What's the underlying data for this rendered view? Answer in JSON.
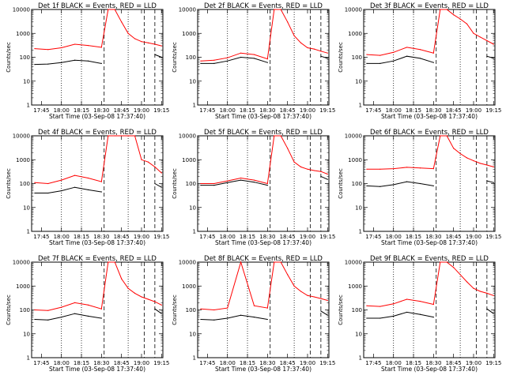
{
  "figure": {
    "title_template": "Det {n}f BLACK = Events, RED = LLD",
    "x_label": "Start Time (03-Sep-08 17:37:40)",
    "y_label": "Counts/sec",
    "x_tick_labels": [
      "17:45",
      "18:00",
      "18:15",
      "18:30",
      "18:45",
      "19:00",
      "19:15"
    ],
    "y_tick_labels": [
      "1",
      "10",
      "100",
      "1000",
      "10000"
    ],
    "colors": {
      "events": "#000000",
      "lld": "#ff0000"
    }
  },
  "chart_data": [
    {
      "type": "line",
      "title": "Det 1f BLACK = Events, RED = LLD",
      "xlabel": "Start Time (03-Sep-08 17:37:40)",
      "ylabel": "Counts/sec",
      "y_scale": "log",
      "ylim": [
        1,
        10000
      ],
      "x_ticks": [
        "17:45",
        "18:00",
        "18:15",
        "18:30",
        "18:45",
        "19:00",
        "19:15"
      ],
      "x": [
        "17:40",
        "17:50",
        "18:00",
        "18:10",
        "18:20",
        "18:30",
        "18:35",
        "18:40",
        "18:45",
        "18:50",
        "18:55",
        "19:00",
        "19:05",
        "19:10",
        "19:15"
      ],
      "series": [
        {
          "name": "Events",
          "values": [
            50,
            52,
            60,
            75,
            70,
            55,
            null,
            null,
            null,
            null,
            null,
            null,
            null,
            130,
            100
          ]
        },
        {
          "name": "LLD",
          "values": [
            230,
            210,
            250,
            350,
            310,
            260,
            10000,
            10000,
            3000,
            1000,
            600,
            450,
            400,
            350,
            300
          ]
        }
      ]
    },
    {
      "type": "line",
      "title": "Det 2f BLACK = Events, RED = LLD",
      "xlabel": "Start Time (03-Sep-08 17:37:40)",
      "ylabel": "Counts/sec",
      "y_scale": "log",
      "ylim": [
        1,
        10000
      ],
      "x_ticks": [
        "17:45",
        "18:00",
        "18:15",
        "18:30",
        "18:45",
        "19:00",
        "19:15"
      ],
      "x": [
        "17:40",
        "17:50",
        "18:00",
        "18:10",
        "18:20",
        "18:30",
        "18:35",
        "18:40",
        "18:45",
        "18:50",
        "18:55",
        "19:00",
        "19:05",
        "19:10",
        "19:15"
      ],
      "series": [
        {
          "name": "Events",
          "values": [
            55,
            55,
            70,
            100,
            90,
            60,
            null,
            null,
            null,
            null,
            null,
            null,
            null,
            110,
            90
          ]
        },
        {
          "name": "LLD",
          "values": [
            70,
            75,
            95,
            150,
            130,
            85,
            10000,
            10000,
            3000,
            800,
            400,
            250,
            220,
            180,
            150
          ]
        }
      ]
    },
    {
      "type": "line",
      "title": "Det 3f BLACK = Events, RED = LLD",
      "xlabel": "Start Time (03-Sep-08 17:37:40)",
      "ylabel": "Counts/sec",
      "y_scale": "log",
      "ylim": [
        1,
        10000
      ],
      "x_ticks": [
        "17:45",
        "18:00",
        "18:15",
        "18:30",
        "18:45",
        "19:00",
        "19:15"
      ],
      "x": [
        "17:40",
        "17:50",
        "18:00",
        "18:10",
        "18:20",
        "18:30",
        "18:35",
        "18:40",
        "18:45",
        "18:50",
        "18:55",
        "19:00",
        "19:05",
        "19:10",
        "19:15"
      ],
      "series": [
        {
          "name": "Events",
          "values": [
            55,
            55,
            70,
            110,
            90,
            60,
            null,
            null,
            null,
            null,
            null,
            null,
            null,
            110,
            90
          ]
        },
        {
          "name": "LLD",
          "values": [
            130,
            120,
            160,
            260,
            210,
            150,
            10000,
            10000,
            6000,
            4000,
            2500,
            1000,
            700,
            500,
            350
          ]
        }
      ]
    },
    {
      "type": "line",
      "title": "Det 4f BLACK = Events, RED = LLD",
      "xlabel": "Start Time (03-Sep-08 17:37:40)",
      "ylabel": "Counts/sec",
      "y_scale": "log",
      "ylim": [
        1,
        10000
      ],
      "x_ticks": [
        "17:45",
        "18:00",
        "18:15",
        "18:30",
        "18:45",
        "19:00",
        "19:15"
      ],
      "x": [
        "17:40",
        "17:50",
        "18:00",
        "18:10",
        "18:20",
        "18:30",
        "18:35",
        "18:40",
        "18:45",
        "18:50",
        "18:55",
        "19:00",
        "19:05",
        "19:10",
        "19:15"
      ],
      "series": [
        {
          "name": "Events",
          "values": [
            40,
            40,
            50,
            70,
            55,
            45,
            null,
            null,
            null,
            null,
            null,
            null,
            null,
            100,
            70
          ]
        },
        {
          "name": "LLD",
          "values": [
            110,
            100,
            140,
            220,
            170,
            120,
            10000,
            10000,
            10000,
            10000,
            10000,
            1000,
            800,
            500,
            280
          ]
        }
      ]
    },
    {
      "type": "line",
      "title": "Det 5f BLACK = Events, RED = LLD",
      "xlabel": "Start Time (03-Sep-08 17:37:40)",
      "ylabel": "Counts/sec",
      "y_scale": "log",
      "ylim": [
        1,
        10000
      ],
      "x_ticks": [
        "17:45",
        "18:00",
        "18:15",
        "18:30",
        "18:45",
        "19:00",
        "19:15"
      ],
      "x": [
        "17:40",
        "17:50",
        "18:00",
        "18:10",
        "18:20",
        "18:30",
        "18:35",
        "18:40",
        "18:45",
        "18:50",
        "18:55",
        "19:00",
        "19:05",
        "19:10",
        "19:15"
      ],
      "series": [
        {
          "name": "Events",
          "values": [
            85,
            85,
            110,
            140,
            115,
            85,
            null,
            null,
            null,
            null,
            null,
            null,
            null,
            200,
            150
          ]
        },
        {
          "name": "LLD",
          "values": [
            100,
            100,
            130,
            170,
            140,
            100,
            10000,
            10000,
            3000,
            800,
            500,
            400,
            350,
            320,
            250
          ]
        }
      ]
    },
    {
      "type": "line",
      "title": "Det 6f BLACK = Events, RED = LLD",
      "xlabel": "Start Time (03-Sep-08 17:37:40)",
      "ylabel": "Counts/sec",
      "y_scale": "log",
      "ylim": [
        1,
        10000
      ],
      "x_ticks": [
        "17:45",
        "18:00",
        "18:15",
        "18:30",
        "18:45",
        "19:00",
        "19:15"
      ],
      "x": [
        "17:40",
        "17:50",
        "18:00",
        "18:10",
        "18:20",
        "18:30",
        "18:35",
        "18:40",
        "18:45",
        "18:50",
        "18:55",
        "19:00",
        "19:05",
        "19:10",
        "19:15"
      ],
      "series": [
        {
          "name": "Events",
          "values": [
            80,
            75,
            90,
            120,
            100,
            80,
            null,
            null,
            null,
            null,
            null,
            null,
            null,
            130,
            110
          ]
        },
        {
          "name": "LLD",
          "values": [
            400,
            400,
            420,
            480,
            450,
            420,
            10000,
            10000,
            3000,
            1800,
            1200,
            900,
            700,
            600,
            500
          ]
        }
      ]
    },
    {
      "type": "line",
      "title": "Det 7f BLACK = Events, RED = LLD",
      "xlabel": "Start Time (03-Sep-08 17:37:40)",
      "ylabel": "Counts/sec",
      "y_scale": "log",
      "ylim": [
        1,
        10000
      ],
      "x_ticks": [
        "17:45",
        "18:00",
        "18:15",
        "18:30",
        "18:45",
        "19:00",
        "19:15"
      ],
      "x": [
        "17:40",
        "17:50",
        "18:00",
        "18:10",
        "18:20",
        "18:30",
        "18:35",
        "18:40",
        "18:45",
        "18:50",
        "18:55",
        "19:00",
        "19:05",
        "19:10",
        "19:15"
      ],
      "series": [
        {
          "name": "Events",
          "values": [
            40,
            38,
            50,
            70,
            55,
            45,
            null,
            null,
            null,
            null,
            null,
            null,
            null,
            110,
            70
          ]
        },
        {
          "name": "LLD",
          "values": [
            100,
            95,
            130,
            200,
            160,
            110,
            10000,
            10000,
            2000,
            800,
            500,
            350,
            280,
            220,
            160
          ]
        }
      ]
    },
    {
      "type": "line",
      "title": "Det 8f BLACK = Events, RED = LLD",
      "xlabel": "Start Time (03-Sep-08 17:37:40)",
      "ylabel": "Counts/sec",
      "y_scale": "log",
      "ylim": [
        1,
        10000
      ],
      "x_ticks": [
        "17:45",
        "18:00",
        "18:15",
        "18:30",
        "18:45",
        "19:00",
        "19:15"
      ],
      "x": [
        "17:40",
        "17:50",
        "18:00",
        "18:10",
        "18:20",
        "18:30",
        "18:35",
        "18:40",
        "18:45",
        "18:50",
        "18:55",
        "19:00",
        "19:05",
        "19:10",
        "19:15"
      ],
      "series": [
        {
          "name": "Events",
          "values": [
            40,
            38,
            45,
            60,
            50,
            40,
            null,
            null,
            null,
            null,
            null,
            null,
            null,
            90,
            60
          ]
        },
        {
          "name": "LLD",
          "values": [
            110,
            100,
            120,
            10000,
            150,
            120,
            10000,
            10000,
            3000,
            1000,
            600,
            400,
            350,
            300,
            250
          ]
        }
      ]
    },
    {
      "type": "line",
      "title": "Det 9f BLACK = Events, RED = LLD",
      "xlabel": "Start Time (03-Sep-08 17:37:40)",
      "ylabel": "Counts/sec",
      "y_scale": "log",
      "ylim": [
        1,
        10000
      ],
      "x_ticks": [
        "17:45",
        "18:00",
        "18:15",
        "18:30",
        "18:45",
        "19:00",
        "19:15"
      ],
      "x": [
        "17:40",
        "17:50",
        "18:00",
        "18:10",
        "18:20",
        "18:30",
        "18:35",
        "18:40",
        "18:45",
        "18:50",
        "18:55",
        "19:00",
        "19:05",
        "19:10",
        "19:15"
      ],
      "series": [
        {
          "name": "Events",
          "values": [
            45,
            45,
            55,
            80,
            65,
            50,
            null,
            null,
            null,
            null,
            null,
            null,
            null,
            110,
            70
          ]
        },
        {
          "name": "LLD",
          "values": [
            150,
            140,
            180,
            280,
            230,
            170,
            10000,
            10000,
            6000,
            3000,
            1500,
            800,
            600,
            500,
            400
          ]
        }
      ]
    }
  ]
}
